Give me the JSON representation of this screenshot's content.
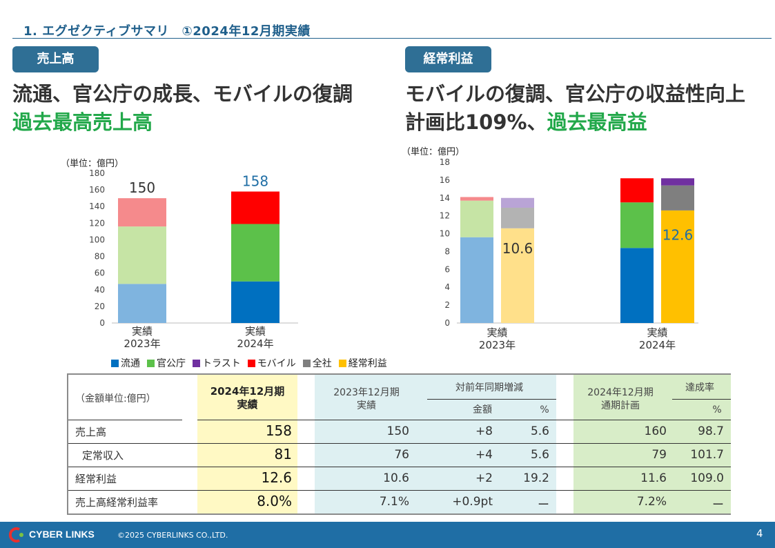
{
  "header": {
    "title": "1. エグゼクティブサマリ　①2024年12月期実績"
  },
  "left": {
    "badge": "売上高",
    "headline1": "流通、官公庁の成長、モバイルの復調",
    "headline2": "過去最高売上高",
    "unit": "（単位：億円）"
  },
  "right": {
    "badge": "経常利益",
    "headline1": "モバイルの復調、官公庁の収益性向上",
    "headline2_prefix": "計画比109%、",
    "headline2_green": "過去最高益",
    "unit": "（単位：億円）"
  },
  "colors": {
    "ryutsu_2023": "#7fb4df",
    "kankocho_2023": "#c6e4a5",
    "mobile_2023": "#f58a8c",
    "ryutsu_2024": "#0070c0",
    "kankocho_2024": "#5cc14a",
    "mobile_2024": "#ff0000",
    "trust_2023": "#b9a4d6",
    "zensha_2023": "#b3b3b3",
    "keijo_2023": "#ffe08a",
    "trust_2024": "#7030a0",
    "zensha_2024": "#7f7f7f",
    "keijo_2024": "#ffc000"
  },
  "chart_data": [
    {
      "type": "bar",
      "title": "売上高",
      "ylabel": "（単位：億円）",
      "ylim": [
        0,
        180
      ],
      "yticks": [
        0,
        20,
        40,
        60,
        80,
        100,
        120,
        140,
        160,
        180
      ],
      "categories": [
        [
          "実績",
          "2023年"
        ],
        [
          "実績",
          "2024年"
        ]
      ],
      "series": [
        {
          "name": "流通",
          "values": [
            47,
            50
          ]
        },
        {
          "name": "官公庁",
          "values": [
            69,
            69
          ]
        },
        {
          "name": "モバイル",
          "values": [
            34,
            39
          ]
        }
      ],
      "totals": [
        "150",
        "158"
      ]
    },
    {
      "type": "bar",
      "title": "経常利益",
      "ylabel": "（単位：億円）",
      "ylim": [
        0,
        18
      ],
      "yticks": [
        0,
        2,
        4,
        6,
        8,
        10,
        12,
        14,
        16,
        18
      ],
      "categories": [
        [
          "実績",
          "2023年"
        ],
        [
          "実績",
          "2024年"
        ]
      ],
      "stacks": [
        {
          "category": 0,
          "segments": [
            {
              "name": "流通",
              "value": 9.6
            },
            {
              "name": "官公庁",
              "value": 4.1
            },
            {
              "name": "モバイル",
              "value": 0.4
            }
          ]
        },
        {
          "category": 0,
          "segments": [
            {
              "name": "経常利益",
              "value": 10.6
            },
            {
              "name": "全社",
              "value": 2.3
            },
            {
              "name": "トラスト",
              "value": 1.1
            }
          ],
          "label": "10.6"
        },
        {
          "category": 1,
          "segments": [
            {
              "name": "流通",
              "value": 8.4
            },
            {
              "name": "官公庁",
              "value": 5.1
            },
            {
              "name": "モバイル",
              "value": 2.7
            }
          ]
        },
        {
          "category": 1,
          "segments": [
            {
              "name": "経常利益",
              "value": 12.6
            },
            {
              "name": "全社",
              "value": 2.8
            },
            {
              "name": "トラスト",
              "value": 0.8
            }
          ],
          "label": "12.6"
        }
      ]
    }
  ],
  "legend": [
    {
      "name": "流通",
      "color": "#0070c0"
    },
    {
      "name": "官公庁",
      "color": "#5cc14a"
    },
    {
      "name": "トラスト",
      "color": "#7030a0"
    },
    {
      "name": "モバイル",
      "color": "#ff0000"
    },
    {
      "name": "全社",
      "color": "#7f7f7f"
    },
    {
      "name": "経常利益",
      "color": "#ffc000"
    }
  ],
  "table": {
    "unit_label": "（金額単位:億円）",
    "col_2024_line1": "2024年12月期",
    "col_2024_line2": "実績",
    "col_2023_line1": "2023年12月期",
    "col_2023_line2": "実績",
    "yoy_header": "対前年同期増減",
    "yoy_amount": "金額",
    "yoy_pct": "%",
    "plan_line1": "2024年12月期",
    "plan_line2": "通期計画",
    "achieve_header": "達成率",
    "achieve_pct": "%",
    "rows": [
      {
        "label": "売上高",
        "v2024": "158",
        "v2023": "150",
        "diff": "+8",
        "pct": "5.6",
        "plan": "160",
        "rate": "98.7"
      },
      {
        "label": "定常収入",
        "v2024": "81",
        "v2023": "76",
        "diff": "+4",
        "pct": "5.6",
        "plan": "79",
        "rate": "101.7"
      },
      {
        "label": "経常利益",
        "v2024": "12.6",
        "v2023": "10.6",
        "diff": "+2",
        "pct": "19.2",
        "plan": "11.6",
        "rate": "109.0"
      },
      {
        "label": "売上高経常利益率",
        "v2024": "8.0%",
        "v2023": "7.1%",
        "diff": "+0.9pt",
        "pct": "ー",
        "plan": "7.2%",
        "rate": "ー"
      }
    ]
  },
  "footer": {
    "logo": "CYBER LINKS",
    "copyright": "©2025 CYBERLINKS CO.,LTD.",
    "page": "4"
  }
}
